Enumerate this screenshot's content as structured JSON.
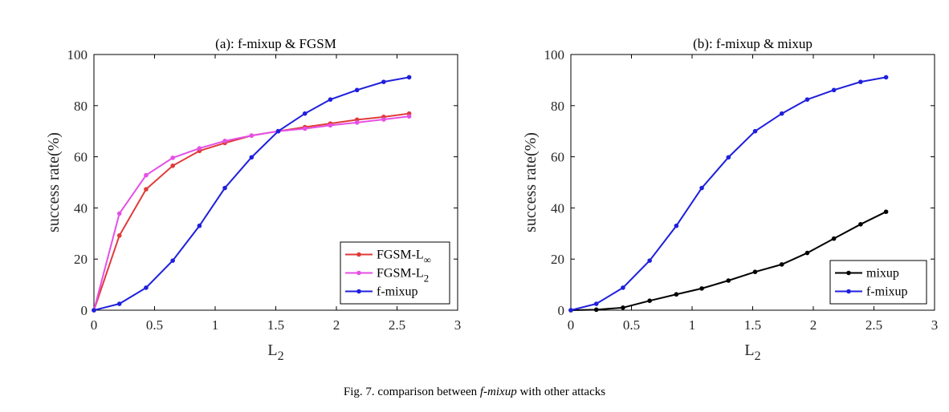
{
  "chart_data": [
    {
      "type": "line",
      "title": "(a): f-mixup & FGSM",
      "xlabel": "L2",
      "ylabel": "success rate(%)",
      "xlim": [
        0,
        3
      ],
      "ylim": [
        0,
        100
      ],
      "xticks": [
        "0",
        "0.5",
        "1",
        "1.5",
        "2",
        "2.5",
        "3"
      ],
      "yticks": [
        "0",
        "20",
        "40",
        "60",
        "80",
        "100"
      ],
      "legend_position": "bottom-right",
      "series": [
        {
          "name": "FGSM-L∞",
          "color": "#e03a3a",
          "x": [
            0,
            0.21,
            0.43,
            0.65,
            0.87,
            1.08,
            1.3,
            1.52,
            1.74,
            1.95,
            2.17,
            2.39,
            2.6
          ],
          "y": [
            0,
            29.2,
            47.3,
            56.5,
            62.3,
            65.4,
            68.3,
            70.0,
            71.6,
            73.0,
            74.5,
            75.6,
            76.9
          ]
        },
        {
          "name": "FGSM-L2",
          "color": "#e64fe6",
          "x": [
            0,
            0.21,
            0.43,
            0.65,
            0.87,
            1.08,
            1.3,
            1.52,
            1.74,
            1.95,
            2.17,
            2.39,
            2.6
          ],
          "y": [
            0,
            37.8,
            52.8,
            59.6,
            63.3,
            66.2,
            68.3,
            70.0,
            71.0,
            72.3,
            73.4,
            74.6,
            75.8
          ]
        },
        {
          "name": "f-mixup",
          "color": "#1f1fdd",
          "x": [
            0,
            0.21,
            0.43,
            0.65,
            0.87,
            1.08,
            1.3,
            1.52,
            1.74,
            1.95,
            2.17,
            2.39,
            2.6
          ],
          "y": [
            0,
            2.5,
            8.8,
            19.4,
            33.0,
            47.8,
            59.8,
            70.0,
            76.9,
            82.4,
            86.1,
            89.3,
            91.1
          ]
        }
      ]
    },
    {
      "type": "line",
      "title": "(b): f-mixup & mixup",
      "xlabel": "L2",
      "ylabel": "success rate(%)",
      "xlim": [
        0,
        3
      ],
      "ylim": [
        0,
        100
      ],
      "xticks": [
        "0",
        "0.5",
        "1",
        "1.5",
        "2",
        "2.5",
        "3"
      ],
      "yticks": [
        "0",
        "20",
        "40",
        "60",
        "80",
        "100"
      ],
      "legend_position": "bottom-right",
      "series": [
        {
          "name": "mixup",
          "color": "#000000",
          "x": [
            0,
            0.21,
            0.43,
            0.65,
            0.87,
            1.08,
            1.3,
            1.52,
            1.74,
            1.95,
            2.17,
            2.39,
            2.6
          ],
          "y": [
            0,
            0.2,
            1.0,
            3.7,
            6.2,
            8.5,
            11.6,
            15.0,
            17.9,
            22.4,
            28.0,
            33.6,
            38.5
          ]
        },
        {
          "name": "f-mixup",
          "color": "#1f1fdd",
          "x": [
            0,
            0.21,
            0.43,
            0.65,
            0.87,
            1.08,
            1.3,
            1.52,
            1.74,
            1.95,
            2.17,
            2.39,
            2.6
          ],
          "y": [
            0,
            2.5,
            8.8,
            19.4,
            33.0,
            47.8,
            59.8,
            70.0,
            76.9,
            82.4,
            86.1,
            89.3,
            91.1
          ]
        }
      ]
    }
  ],
  "caption": {
    "prefix": "Fig. 7.  comparison between ",
    "emph": "f-mixup",
    "suffix": " with other attacks"
  }
}
